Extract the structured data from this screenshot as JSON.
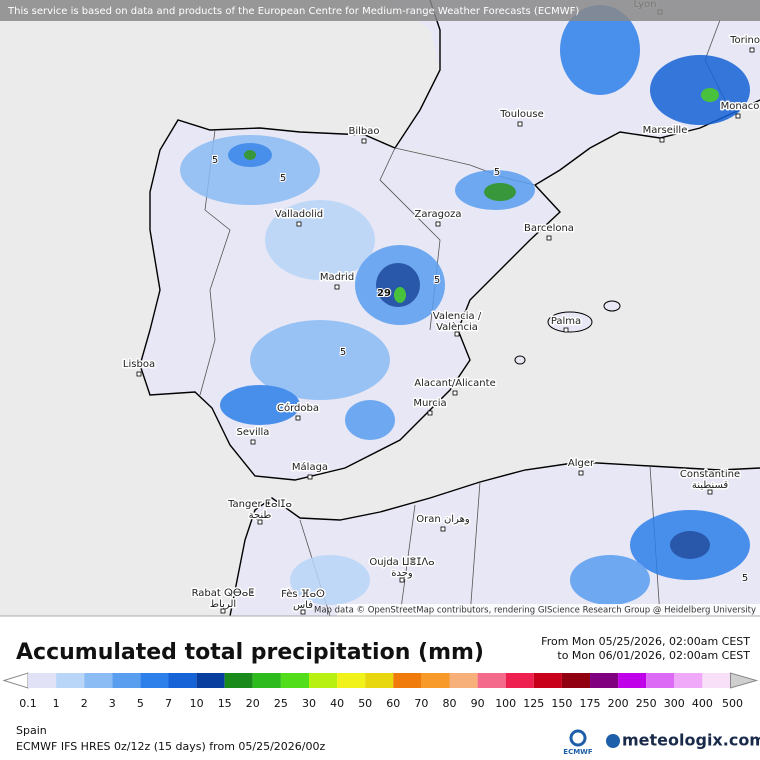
{
  "header": {
    "notice": "This service is based on data and products of the European Centre for Medium-range Weather Forecasts (ECMWF)"
  },
  "map": {
    "attribution": "Map data © OpenStreetMap contributors, rendering GIScience Research Group @ Heidelberg University",
    "cities": [
      {
        "name": "Lyon"
      },
      {
        "name": "Torino"
      },
      {
        "name": "Monaco"
      },
      {
        "name": "Marseille"
      },
      {
        "name": "Toulouse"
      },
      {
        "name": "Bilbao"
      },
      {
        "name": "Valladolid"
      },
      {
        "name": "Zaragoza"
      },
      {
        "name": "Barcelona"
      },
      {
        "name": "Madrid"
      },
      {
        "name": "Valencia /",
        "local": "València"
      },
      {
        "name": "Palma"
      },
      {
        "name": "Lisboa"
      },
      {
        "name": "Alacant/Alicante"
      },
      {
        "name": "Murcia"
      },
      {
        "name": "Córdoba"
      },
      {
        "name": "Sevilla"
      },
      {
        "name": "Málaga"
      },
      {
        "name": "Alger"
      },
      {
        "name": "Constantine",
        "local": "قسنطينة"
      },
      {
        "name": "Tanger ⵟⴰⵏⵊⴰ",
        "local": "طنجة"
      },
      {
        "name": "Oran وهران"
      },
      {
        "name": "Oujda ⵡⴻⵊⴷⴰ",
        "local": "وجدة"
      },
      {
        "name": "Rabat ⵕⴱⴰⵟ",
        "local": "الرباط"
      },
      {
        "name": "Fès ⴼⴰⵙ",
        "local": "فاس"
      }
    ],
    "annotations": [
      "29",
      "5",
      "5",
      "5",
      "5",
      "5",
      "5"
    ]
  },
  "legend": {
    "title": "Accumulated total precipitation (mm)",
    "period_from": "From Mon 05/25/2026, 02:00am CEST",
    "period_to": "to Mon 06/01/2026, 02:00am CEST",
    "levels": [
      {
        "value": 0.1,
        "color": "#e2e2f6"
      },
      {
        "value": 1,
        "color": "#b9d5f7"
      },
      {
        "value": 2,
        "color": "#8cbcf4"
      },
      {
        "value": 3,
        "color": "#5a9ef0"
      },
      {
        "value": 5,
        "color": "#2d7fea"
      },
      {
        "value": 7,
        "color": "#1563d6"
      },
      {
        "value": 10,
        "color": "#083e9e"
      },
      {
        "value": 15,
        "color": "#1a8a1a"
      },
      {
        "value": 20,
        "color": "#2dbb1e"
      },
      {
        "value": 25,
        "color": "#52dd1a"
      },
      {
        "value": 30,
        "color": "#b8f012"
      },
      {
        "value": 40,
        "color": "#f2f21b"
      },
      {
        "value": 50,
        "color": "#e8d60f"
      },
      {
        "value": 60,
        "color": "#f07a0a"
      },
      {
        "value": 70,
        "color": "#f79a2a"
      },
      {
        "value": 80,
        "color": "#f8b07a"
      },
      {
        "value": 90,
        "color": "#f46a8a"
      },
      {
        "value": 100,
        "color": "#ee2050"
      },
      {
        "value": 125,
        "color": "#c8001a"
      },
      {
        "value": 150,
        "color": "#900010"
      },
      {
        "value": 175,
        "color": "#800080"
      },
      {
        "value": 200,
        "color": "#c000e8"
      },
      {
        "value": 250,
        "color": "#dc6af5"
      },
      {
        "value": 300,
        "color": "#f0a8f8"
      },
      {
        "value": 400,
        "color": "#f8e0f8"
      },
      {
        "value": 500,
        "color": "#cfcfcf"
      }
    ]
  },
  "footer": {
    "region": "Spain",
    "model": "ECMWF IFS HRES 0z/12z (15 days) from 05/25/2026/00z",
    "ecmwf": "ECMWF",
    "brand": "meteologix.com"
  }
}
